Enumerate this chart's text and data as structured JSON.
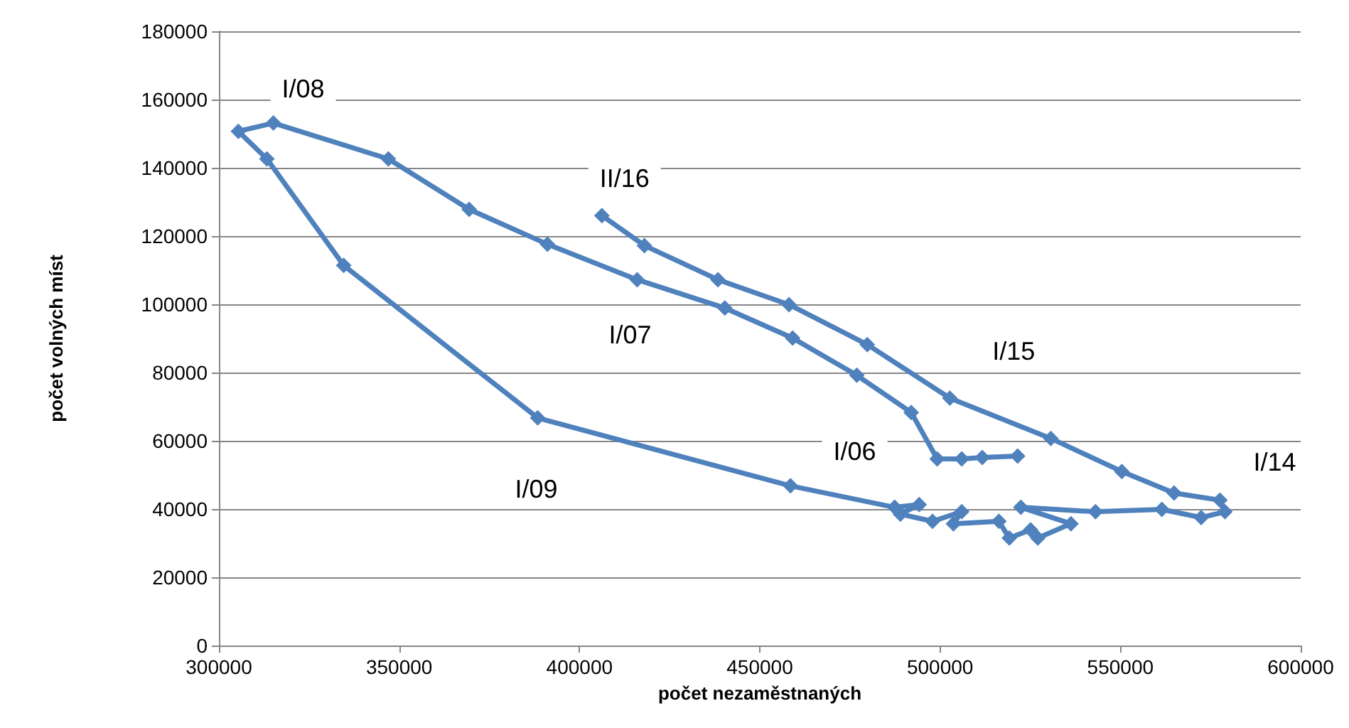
{
  "chart_data": {
    "type": "line",
    "xlabel": "počet nezaměstnaných",
    "ylabel": "počet volných míst",
    "series": [
      {
        "color": "#4f81bd",
        "x": [
          521500,
          511700,
          506000,
          499200,
          492000,
          476900,
          459100,
          440300,
          416000,
          391100,
          369400,
          347000,
          315100,
          305400,
          313300,
          334600,
          388400,
          458500,
          487400,
          494200,
          489000,
          497900,
          506000,
          503700,
          516300,
          519200,
          525100,
          527100,
          536300,
          522400,
          543100,
          561500,
          572400,
          579000,
          577600,
          564900,
          550400,
          530700,
          502700,
          479800,
          458100,
          438400,
          418000,
          406200
        ],
        "values": [
          55500,
          55100,
          54700,
          54700,
          68300,
          79200,
          90100,
          98900,
          107200,
          117600,
          127800,
          142600,
          153100,
          150700,
          142600,
          111400,
          66700,
          46800,
          40500,
          41300,
          38500,
          36400,
          39200,
          35700,
          36400,
          31500,
          33900,
          31500,
          35700,
          40500,
          39200,
          39900,
          37500,
          39200,
          42600,
          44700,
          51000,
          60700,
          72500,
          88200,
          99900,
          107200,
          117200,
          126000
        ]
      }
    ],
    "annotations": [
      {
        "text": "I/06",
        "x": 499200,
        "y": 54700
      },
      {
        "text": "I/07",
        "x": 416000,
        "y": 107200
      },
      {
        "text": "I/08",
        "x": 315100,
        "y": 153100
      },
      {
        "text": "I/09",
        "x": 388400,
        "y": 66700
      },
      {
        "text": "I/14",
        "x": 579000,
        "y": 39200
      },
      {
        "text": "I/15",
        "x": 502700,
        "y": 72500
      },
      {
        "text": "II/16",
        "x": 406200,
        "y": 126000
      }
    ],
    "xlim": [
      300000,
      600000
    ],
    "xticks": [
      300000,
      350000,
      400000,
      450000,
      500000,
      550000,
      600000
    ],
    "ylim": [
      0,
      180000
    ],
    "yticks": [
      0,
      20000,
      40000,
      60000,
      80000,
      100000,
      120000,
      140000,
      160000,
      180000
    ],
    "grid": "y",
    "marker": "diamond",
    "line_style": "solid"
  }
}
